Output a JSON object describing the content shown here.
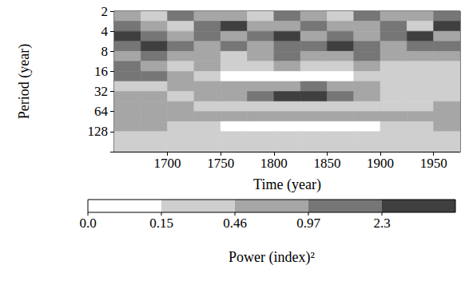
{
  "chart_data": {
    "type": "heatmap",
    "x_label": "Time (year)",
    "y_label": "Period (year)",
    "xlim": [
      1650,
      1975
    ],
    "xticks": [
      1700,
      1750,
      1800,
      1850,
      1900,
      1950
    ],
    "ylim": [
      2,
      256
    ],
    "yticks": [
      2,
      4,
      8,
      16,
      32,
      64,
      128
    ],
    "log": "y",
    "cells": {
      "x_edges": [
        1650,
        1675,
        1700,
        1725,
        1750,
        1775,
        1800,
        1825,
        1850,
        1875,
        1900,
        1925,
        1950,
        1975
      ],
      "y_edges": [
        2,
        2.83,
        4,
        5.66,
        8,
        11.3,
        16,
        22.6,
        32,
        45.3,
        64,
        90.5,
        128,
        181,
        256
      ],
      "power": [
        [
          0.6,
          0.3,
          1.2,
          0.5,
          0.7,
          0.3,
          1.1,
          0.6,
          0.4,
          1.3,
          0.5,
          0.8,
          1.2
        ],
        [
          1.5,
          0.7,
          0.4,
          1.1,
          2.5,
          0.6,
          0.8,
          1.4,
          0.5,
          0.9,
          1.6,
          0.4,
          2.4
        ],
        [
          2.6,
          1.2,
          0.8,
          1.6,
          0.5,
          1.0,
          2.4,
          0.7,
          1.3,
          0.6,
          1.1,
          2.5,
          0.9
        ],
        [
          1.0,
          2.5,
          1.1,
          0.6,
          1.2,
          0.8,
          1.1,
          1.0,
          2.5,
          1.2,
          0.5,
          1.1,
          1.4
        ],
        [
          0.8,
          1.3,
          0.5,
          0.9,
          0.4,
          0.6,
          1.0,
          0.5,
          0.7,
          1.0,
          0.6,
          0.9,
          0.5
        ],
        [
          1.2,
          0.5,
          0.3,
          0.6,
          0.2,
          0.3,
          0.6,
          0.4,
          0.3,
          0.5,
          0.3,
          0.2,
          0.4
        ],
        [
          1.3,
          1.1,
          0.5,
          0.2,
          0.1,
          0.1,
          0.1,
          0.1,
          0.1,
          0.2,
          0.3,
          0.2,
          0.3
        ],
        [
          0.3,
          0.4,
          0.6,
          0.7,
          0.5,
          0.6,
          0.9,
          1.1,
          0.8,
          0.6,
          0.3,
          0.4,
          0.3
        ],
        [
          0.6,
          0.5,
          0.4,
          0.5,
          0.9,
          1.2,
          2.5,
          2.6,
          1.1,
          0.7,
          0.3,
          0.2,
          0.3
        ],
        [
          0.7,
          0.6,
          0.5,
          0.3,
          0.2,
          0.3,
          0.3,
          0.4,
          0.3,
          0.2,
          0.3,
          0.4,
          0.6
        ],
        [
          0.9,
          0.8,
          0.7,
          0.6,
          0.5,
          0.5,
          0.6,
          0.6,
          0.5,
          0.5,
          0.6,
          0.7,
          0.8
        ],
        [
          0.6,
          0.5,
          0.4,
          0.3,
          0.1,
          0.1,
          0.1,
          0.1,
          0.1,
          0.1,
          0.3,
          0.4,
          0.5
        ],
        [
          0.3,
          0.3,
          0.3,
          0.3,
          0.3,
          0.3,
          0.3,
          0.3,
          0.3,
          0.3,
          0.3,
          0.3,
          0.3
        ],
        [
          0.3,
          0.3,
          0.3,
          0.3,
          0.3,
          0.3,
          0.3,
          0.3,
          0.3,
          0.3,
          0.3,
          0.3,
          0.3
        ]
      ]
    },
    "colorbar": {
      "label": "Power (index)²",
      "ticks": [
        {
          "value": 0,
          "label": "0.0"
        },
        0.15,
        0.46,
        0.97,
        2.3
      ],
      "colors": [
        "#ffffff",
        "#cfcfcf",
        "#a6a6a6",
        "#767676",
        "#3f3f3f"
      ]
    }
  }
}
